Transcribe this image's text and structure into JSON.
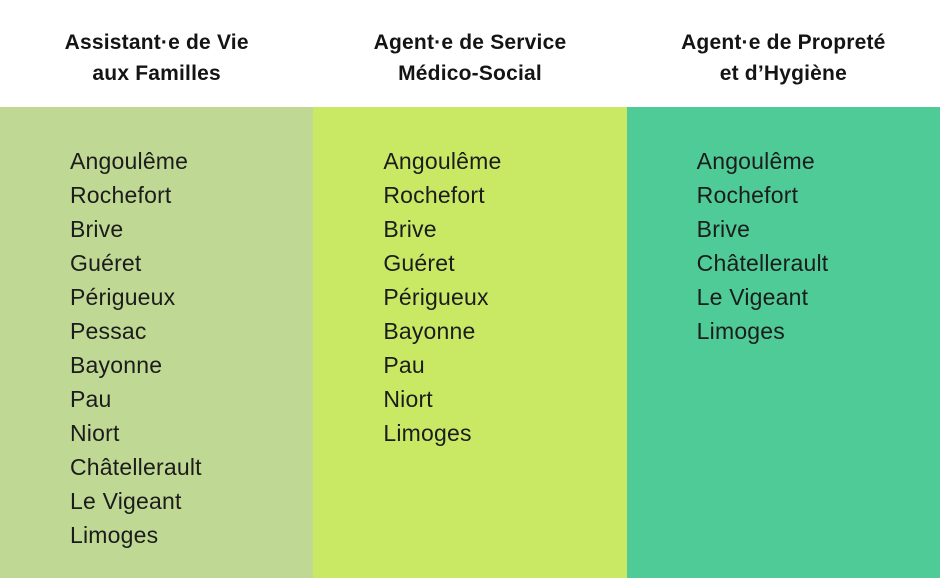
{
  "colors": {
    "header_bg": "#ffffff",
    "header_text": "#141414",
    "list_text": "#1c1c1c"
  },
  "columns": [
    {
      "title_line1": "Assistant·e de Vie",
      "title_line2": "aux Familles",
      "bg_color": "#bfd893",
      "cities": [
        "Angoulême",
        "Rochefort",
        "Brive",
        "Guéret",
        "Périgueux",
        "Pessac",
        "Bayonne",
        "Pau",
        "Niort",
        "Châtellerault",
        "Le Vigeant",
        "Limoges"
      ]
    },
    {
      "title_line1": "Agent·e de Service",
      "title_line2": "Médico-Social",
      "bg_color": "#c9e965",
      "cities": [
        "Angoulême",
        "Rochefort",
        "Brive",
        "Guéret",
        "Périgueux",
        "Bayonne",
        "Pau",
        "Niort",
        "Limoges"
      ]
    },
    {
      "title_line1": "Agent·e de Propreté",
      "title_line2": "et d’Hygiène",
      "bg_color": "#4ecb97",
      "cities": [
        "Angoulême",
        "Rochefort",
        "Brive",
        "Châtellerault",
        "Le Vigeant",
        "Limoges"
      ]
    }
  ]
}
